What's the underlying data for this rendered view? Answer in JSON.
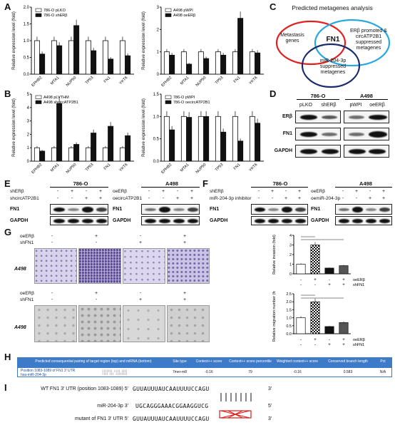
{
  "panels": {
    "A": "A",
    "B": "B",
    "C": "C",
    "D": "D",
    "E": "E",
    "F": "F",
    "G": "G",
    "H": "H",
    "I": "I"
  },
  "chart_data": [
    {
      "id": "A-left",
      "type": "bar",
      "categories": [
        "EPHB2",
        "MTA1",
        "NUP50",
        "TP53",
        "FN1",
        "YKT6"
      ],
      "ylabel": "Relative expression level (fold)",
      "ylim": [
        0,
        2.0
      ],
      "yticks": [
        "0.0",
        "0.5",
        "1.0",
        "1.5",
        "2.0"
      ],
      "legend": "top-left",
      "series": [
        {
          "name": "786-O pLKO",
          "color": "#ffffff",
          "values": [
            1.0,
            1.0,
            1.0,
            1.0,
            1.0,
            1.0
          ]
        },
        {
          "name": "786-O shERβ",
          "color": "#111111",
          "values": [
            0.6,
            0.85,
            1.45,
            0.7,
            0.45,
            0.55
          ]
        }
      ]
    },
    {
      "id": "A-right",
      "type": "bar",
      "categories": [
        "EPHB2",
        "MTA1",
        "NUP50",
        "TP53",
        "FN1",
        "YKT6"
      ],
      "ylabel": "Relative expression level (fold)",
      "ylim": [
        0,
        3
      ],
      "yticks": [
        "0",
        "1",
        "2",
        "3"
      ],
      "legend": "top-left",
      "series": [
        {
          "name": "A498 pWPI",
          "color": "#ffffff",
          "values": [
            1.0,
            1.0,
            1.0,
            1.0,
            1.0,
            1.0
          ]
        },
        {
          "name": "A498 oeERβ",
          "color": "#111111",
          "values": [
            0.85,
            0.45,
            0.7,
            0.85,
            2.5,
            0.95
          ]
        }
      ]
    },
    {
      "id": "B-left",
      "type": "bar",
      "categories": [
        "EPHB2",
        "MTA1",
        "NUP50",
        "TP53",
        "FN1",
        "YKT6"
      ],
      "ylabel": "Relative expression level (fold)",
      "ylim": [
        0,
        5
      ],
      "yticks": [
        "0",
        "1",
        "2",
        "3",
        "4",
        "5"
      ],
      "legend": "top-left",
      "series": [
        {
          "name": "A498 pLVTHM",
          "color": "#ffffff",
          "values": [
            1.0,
            1.0,
            1.0,
            1.0,
            1.0,
            1.0
          ]
        },
        {
          "name": "A498 shcircATP2B1",
          "color": "#111111",
          "values": [
            0.75,
            4.3,
            1.25,
            2.1,
            2.6,
            1.9
          ]
        }
      ]
    },
    {
      "id": "B-right",
      "type": "bar",
      "categories": [
        "EPHB2",
        "MTA1",
        "NUP50",
        "TP53",
        "FN1",
        "YKT6"
      ],
      "ylabel": "Relative expression level (fold)",
      "ylim": [
        0,
        1.5
      ],
      "yticks": [
        "0.0",
        "0.5",
        "1.0",
        "1.5"
      ],
      "legend": "top-left",
      "series": [
        {
          "name": "786-O pWPI",
          "color": "#ffffff",
          "values": [
            1.0,
            1.0,
            1.0,
            1.0,
            1.0,
            1.0
          ]
        },
        {
          "name": "786-O oecircATP2B1",
          "color": "#111111",
          "values": [
            0.7,
            0.98,
            1.0,
            0.65,
            0.45,
            0.85
          ]
        }
      ]
    },
    {
      "id": "G-top",
      "type": "bar",
      "categories": [
        "1",
        "2",
        "3",
        "4"
      ],
      "ylabel": "Relative invasion (fold)",
      "ylim": [
        0,
        4
      ],
      "yticks": [
        "0",
        "1",
        "2",
        "3",
        "4"
      ],
      "series": [
        {
          "name": "invasion",
          "values": [
            1.0,
            3.0,
            0.6,
            0.85
          ]
        }
      ]
    },
    {
      "id": "G-bottom",
      "type": "bar",
      "categories": [
        "1",
        "2",
        "3",
        "4"
      ],
      "ylabel": "Relative migration number (fold)",
      "ylim": [
        0,
        2.5
      ],
      "yticks": [
        "0.0",
        "0.5",
        "1.0",
        "1.5",
        "2.0",
        "2.5"
      ],
      "series": [
        {
          "name": "migration",
          "values": [
            1.0,
            2.0,
            0.45,
            0.7
          ]
        }
      ]
    }
  ],
  "venn": {
    "title": "Predicted metagenes analysis",
    "left": "Metastasis genes",
    "right": "ERβ promoted & circATP2B1 suppressed metagenes",
    "bottom": "miR-204-3p suppressed metagenes",
    "center": "FN1"
  },
  "blotD": {
    "left_header": "786-O",
    "right_header": "A498",
    "lanes_left": [
      "pLKO",
      "shERβ"
    ],
    "lanes_right": [
      "pWPI",
      "oeERβ"
    ],
    "rows": [
      "ERβ",
      "FN1",
      "GAPDH"
    ]
  },
  "blotE": {
    "left_header": "786-O",
    "right_header": "A498",
    "left_rows": [
      {
        "label": "shERβ",
        "signs": [
          "-",
          "+",
          "-",
          "+"
        ]
      },
      {
        "label": "shcircATP2B1",
        "signs": [
          "-",
          "-",
          "+",
          "+"
        ]
      }
    ],
    "right_rows": [
      {
        "label": "oeERβ",
        "signs": [
          "-",
          "+",
          "-",
          "+"
        ]
      },
      {
        "label": "oecircATP2B1",
        "signs": [
          "-",
          "-",
          "+",
          "+"
        ]
      }
    ],
    "blot_rows": [
      "FN1",
      "GAPDH"
    ]
  },
  "blotF": {
    "left_header": "786-O",
    "right_header": "A498",
    "left_rows": [
      {
        "label": "shERβ",
        "signs": [
          "-",
          "+",
          "-",
          "+"
        ]
      },
      {
        "label": "miR-204-3p inhibitor",
        "signs": [
          "-",
          "-",
          "+",
          "+"
        ]
      }
    ],
    "right_rows": [
      {
        "label": "oeERβ",
        "signs": [
          "-",
          "+",
          "-",
          "+"
        ]
      },
      {
        "label": "oemiR-204-3p",
        "signs": [
          "-",
          "-",
          "+",
          "+"
        ]
      }
    ],
    "blot_rows": [
      "FN1",
      "GAPDH"
    ]
  },
  "panelG": {
    "top_rows": [
      {
        "label": "oeERβ",
        "signs": [
          "-",
          "+",
          "-",
          "+"
        ]
      },
      {
        "label": "shFN1",
        "signs": [
          "-",
          "-",
          "+",
          "+"
        ]
      }
    ],
    "bottom_rows": [
      {
        "label": "oeERβ",
        "signs": [
          "-",
          "+",
          "-",
          "+"
        ]
      },
      {
        "label": "shFN1",
        "signs": [
          "-",
          "-",
          "+",
          "+"
        ]
      }
    ],
    "cell_label": "A498",
    "bar_rows_top": [
      {
        "label": "oeERβ",
        "signs": [
          "-",
          "+",
          "-",
          "+"
        ]
      },
      {
        "label": "shFN1",
        "signs": [
          "-",
          "-",
          "+",
          "+"
        ]
      }
    ],
    "bar_rows_bottom": [
      {
        "label": "oeERβ",
        "signs": [
          "-",
          "+",
          "-",
          "+"
        ]
      },
      {
        "label": "shFN1",
        "signs": [
          "-",
          "-",
          "+",
          "+"
        ]
      }
    ]
  },
  "tableH": {
    "headers": [
      "Predicted consequential pairing of target region (top) and miRNA (bottom)",
      "Site type",
      "Context++ score",
      "Context++ score percentile",
      "Weighted context++ score",
      "Conserved branch length",
      "Pct"
    ],
    "rows": [
      [
        "Position 1083-1089 of FN1 3' UTR",
        "7mer-m8",
        "-0.16",
        "79",
        "-0.16",
        "0.583",
        "N/A"
      ],
      [
        "hsa-miR-204-3p",
        "",
        "",
        "",
        "",
        "",
        ""
      ]
    ]
  },
  "panelI": {
    "wt_label": "WT FN1 3' UTR (position 1083-1089) 5'",
    "wt_seq": "GUUAUUUAUCAAUUUUCCAGU",
    "wt_end": "3'",
    "mir_label": "miR-204-3p 3'",
    "mir_seq": "UGCAGGGAAACGGAAGGUCG",
    "mir_end": "5'",
    "mut_label": "mutant of FN1 3' UTR 5'",
    "mut_seq": "GUUAUUUAUCAAUUUUCCAGU",
    "mut_end": "3'"
  }
}
